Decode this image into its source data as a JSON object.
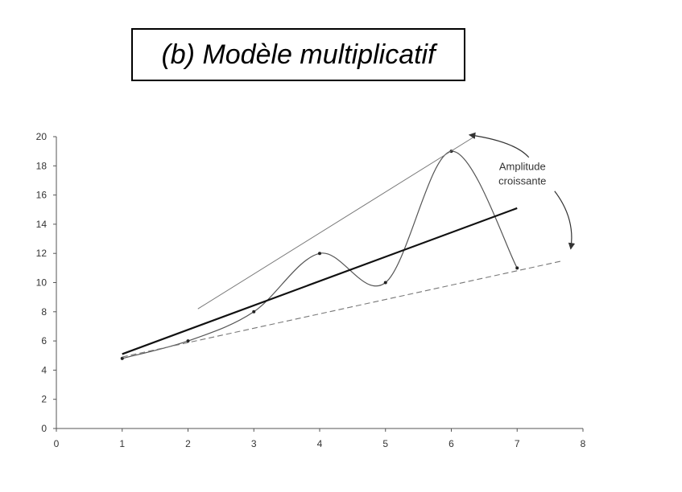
{
  "header": {
    "title": "(b) Modèle multiplicatif"
  },
  "chart_data": {
    "type": "line",
    "title": "(b) Modèle multiplicatif",
    "xlim": [
      0,
      8
    ],
    "ylim": [
      0,
      20
    ],
    "x_ticks": [
      0,
      1,
      2,
      3,
      4,
      5,
      6,
      7,
      8
    ],
    "y_ticks": [
      0,
      2,
      4,
      6,
      8,
      10,
      12,
      14,
      16,
      18,
      20
    ],
    "grid": false,
    "legend": "none",
    "series": [
      {
        "kind": "data",
        "x": [
          1,
          2,
          3,
          4,
          5,
          6,
          7
        ],
        "y": [
          4.8,
          6,
          8,
          12,
          10,
          19,
          11
        ],
        "color": "#555555"
      },
      {
        "kind": "trend",
        "x": [
          1,
          7
        ],
        "y": [
          5.1,
          15.1
        ],
        "color": "#111111"
      },
      {
        "kind": "upper-envelope",
        "x": [
          2.15,
          6.35
        ],
        "y": [
          8.2,
          20
        ],
        "color": "#777777"
      },
      {
        "kind": "lower-envelope",
        "x": [
          1,
          7.7
        ],
        "y": [
          4.9,
          11.5
        ],
        "color": "#777777"
      }
    ],
    "annotations": [
      {
        "lines": [
          "Amplitude",
          "croissante"
        ],
        "x": 7.08,
        "y": 17.7
      }
    ]
  }
}
